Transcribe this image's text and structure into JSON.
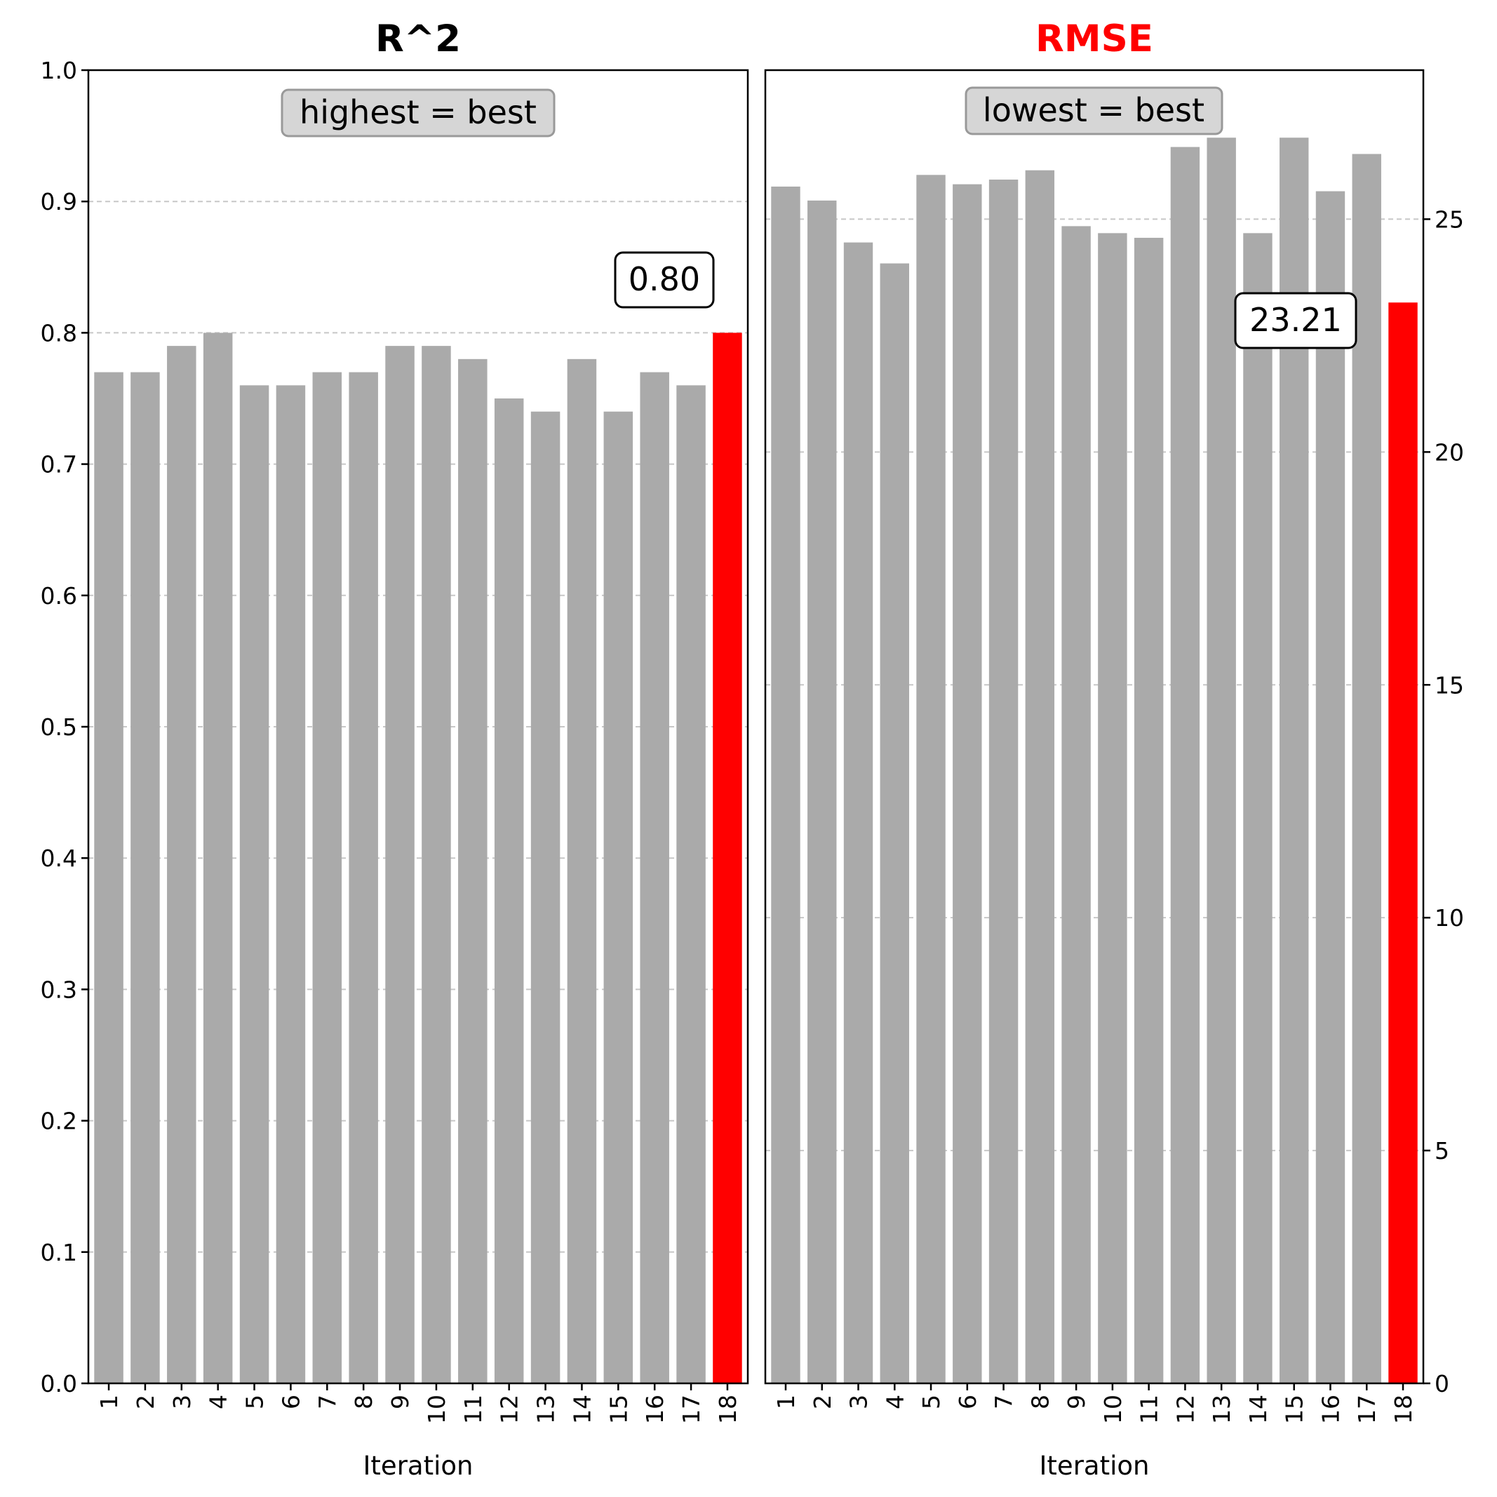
{
  "chart_data": [
    {
      "type": "bar",
      "title": "R^2",
      "title_color": "#000000",
      "xlabel": "Iteration",
      "ylabel": "",
      "categories": [
        "1",
        "2",
        "3",
        "4",
        "5",
        "6",
        "7",
        "8",
        "9",
        "10",
        "11",
        "12",
        "13",
        "14",
        "15",
        "16",
        "17",
        "18"
      ],
      "values": [
        0.77,
        0.77,
        0.79,
        0.8,
        0.76,
        0.76,
        0.77,
        0.77,
        0.79,
        0.79,
        0.78,
        0.75,
        0.74,
        0.78,
        0.74,
        0.77,
        0.76,
        0.8
      ],
      "ylim": [
        0,
        1.0
      ],
      "yticks": [
        "0.0",
        "0.1",
        "0.2",
        "0.3",
        "0.4",
        "0.5",
        "0.6",
        "0.7",
        "0.8",
        "0.9",
        "1.0"
      ],
      "y_axis_side": "left",
      "grid": "horizontal dashed",
      "bar_color": "#aaaaaa",
      "highlight_index": 17,
      "highlight_color": "#ff0000",
      "annotation": "highest = best",
      "value_label": "0.80"
    },
    {
      "type": "bar",
      "title": "RMSE",
      "title_color": "#ff0000",
      "xlabel": "Iteration",
      "ylabel": "",
      "categories": [
        "1",
        "2",
        "3",
        "4",
        "5",
        "6",
        "7",
        "8",
        "9",
        "10",
        "11",
        "12",
        "13",
        "14",
        "15",
        "16",
        "17",
        "18"
      ],
      "values": [
        25.7,
        25.4,
        24.5,
        24.05,
        25.95,
        25.75,
        25.85,
        26.05,
        24.85,
        24.7,
        24.6,
        26.55,
        26.75,
        24.7,
        26.75,
        25.6,
        26.4,
        23.21
      ],
      "ylim": [
        0,
        28.2
      ],
      "yticks": [
        "0",
        "5",
        "10",
        "15",
        "20",
        "25"
      ],
      "y_axis_side": "right",
      "grid": "horizontal dashed",
      "bar_color": "#aaaaaa",
      "highlight_index": 17,
      "highlight_color": "#ff0000",
      "annotation": "lowest = best",
      "value_label": "23.21"
    }
  ]
}
